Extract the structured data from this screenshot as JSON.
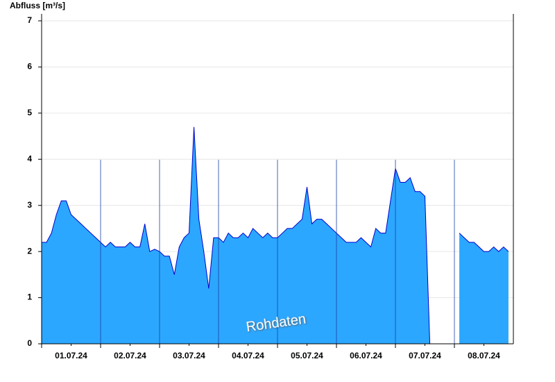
{
  "chart_data": {
    "type": "area",
    "title": "Abfluss [m³/s]",
    "annotation": "Rohdaten",
    "categories": [
      "01.07.24",
      "02.07.24",
      "03.07.24",
      "04.07.24",
      "05.07.24",
      "06.07.24",
      "07.07.24",
      "08.07.24"
    ],
    "series": [
      {
        "name": "Abfluss",
        "color": "#2ca7ff",
        "line_color": "#0000cc",
        "values": [
          [
            2.2,
            2.2,
            2.4,
            2.8,
            3.1,
            3.1,
            2.8,
            2.7,
            2.6,
            2.5,
            2.4,
            2.3
          ],
          [
            2.2,
            2.1,
            2.2,
            2.1,
            2.1,
            2.1,
            2.2,
            2.1,
            2.1,
            2.6,
            2.0,
            2.05
          ],
          [
            2.0,
            1.9,
            1.9,
            1.5,
            2.1,
            2.3,
            2.4,
            4.7,
            2.7,
            2.0,
            1.2,
            2.3
          ],
          [
            2.3,
            2.2,
            2.4,
            2.3,
            2.3,
            2.4,
            2.3,
            2.5,
            2.4,
            2.3,
            2.4,
            2.3
          ],
          [
            2.3,
            2.4,
            2.5,
            2.5,
            2.6,
            2.7,
            3.4,
            2.6,
            2.7,
            2.7,
            2.6,
            2.5
          ],
          [
            2.4,
            2.3,
            2.2,
            2.2,
            2.2,
            2.3,
            2.2,
            2.1,
            2.5,
            2.4,
            2.4,
            3.1
          ],
          [
            3.8,
            3.5,
            3.5,
            3.6,
            3.3,
            3.3,
            3.2,
            0,
            null,
            null,
            null,
            null
          ],
          [
            null,
            2.4,
            2.3,
            2.2,
            2.2,
            2.1,
            2.0,
            2.0,
            2.1,
            2.0,
            2.1,
            2.0
          ]
        ]
      }
    ],
    "ylim": [
      0,
      7
    ],
    "yticks": [
      0,
      1,
      2,
      3,
      4,
      5,
      6,
      7
    ],
    "grid": true
  }
}
